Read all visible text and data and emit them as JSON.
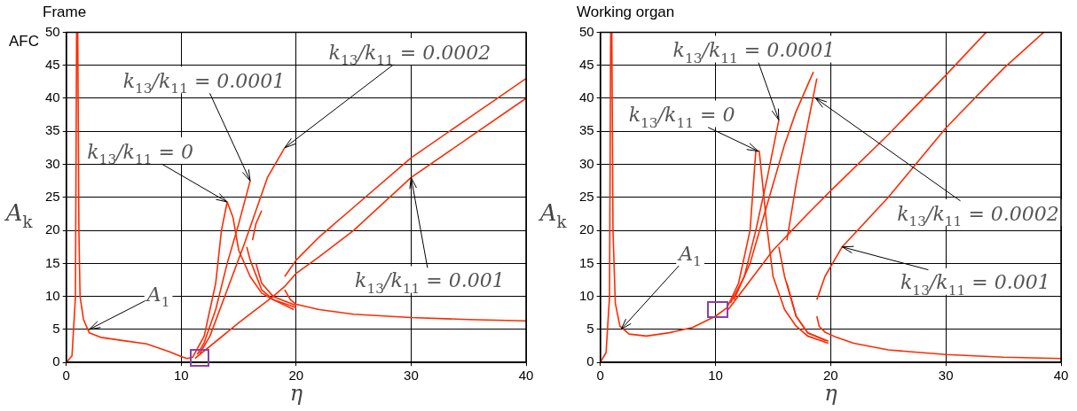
{
  "chart_data": [
    {
      "type": "line",
      "title": "Frame",
      "xlabel": "η",
      "ylabel": "A$_{k}$",
      "xlim": [
        0,
        40
      ],
      "ylim": [
        0,
        50
      ],
      "xticks": [
        0,
        10,
        20,
        30,
        40
      ],
      "yticks": [
        0,
        5,
        10,
        15,
        20,
        25,
        30,
        35,
        40,
        45,
        50
      ],
      "grid": true,
      "series": [
        {
          "color": "#ff2a00",
          "x": [
            0,
            0.5,
            0.8,
            0.9,
            0.95,
            1.0,
            1.1,
            1.2,
            1.5,
            2,
            3,
            5,
            7,
            9,
            10,
            10.5,
            11,
            12,
            13,
            13.5,
            14,
            14.5,
            15,
            16,
            17,
            18,
            20
          ],
          "values": [
            0,
            1,
            10,
            50,
            null,
            50,
            20,
            10,
            6.5,
            4.5,
            3.8,
            3.3,
            2.8,
            1.6,
            0.9,
            0.6,
            0.8,
            4,
            12,
            20,
            24.3,
            22,
            17,
            13,
            10.5,
            9.5,
            8.3
          ]
        },
        {
          "color": "#ff2a00",
          "x": [
            11.4,
            12,
            13,
            14,
            15,
            16
          ],
          "values": [
            1.2,
            3,
            8,
            15,
            21,
            27.5
          ]
        },
        {
          "color": "#ff2a00",
          "x": [
            15.7,
            16,
            17,
            18,
            19.8
          ],
          "values": [
            17.5,
            15.5,
            11,
            9.5,
            8
          ]
        },
        {
          "color": "#ff2a00",
          "x": [
            11.6,
            12.5,
            14,
            15.5,
            16.5,
            17.5,
            19
          ],
          "values": [
            1.3,
            4,
            11,
            18,
            23,
            28,
            32.5
          ]
        },
        {
          "color": "#ff2a00",
          "x": [
            16.2,
            16.5,
            17
          ],
          "values": [
            18.5,
            21,
            23
          ]
        },
        {
          "color": "#ff2a00",
          "x": [
            16.5,
            17,
            18,
            20
          ],
          "values": [
            15,
            12,
            10,
            8.6
          ]
        },
        {
          "color": "#ff2a00",
          "x": [
            11.2,
            15,
            18,
            19,
            20,
            22,
            25,
            30,
            35,
            40
          ],
          "values": [
            0.6,
            6,
            10,
            11.5,
            13.5,
            16,
            20,
            28,
            34,
            40
          ]
        },
        {
          "color": "#ff2a00",
          "x": [
            19,
            20,
            22,
            25,
            30,
            35,
            40
          ],
          "values": [
            13,
            15.5,
            19,
            23.5,
            31,
            37,
            43
          ]
        },
        {
          "color": "#ff2a00",
          "x": [
            19,
            19.5,
            20,
            22,
            25,
            30,
            35,
            40
          ],
          "values": [
            11,
            9.5,
            8.8,
            8,
            7.3,
            6.8,
            6.5,
            6.3
          ]
        }
      ],
      "annotations": [
        "AFC",
        {
          "text": "A$_{1}$",
          "x": 2,
          "y": 5
        },
        {
          "text": "k$_{13}$/k$_{11}$ = 0",
          "x": 14,
          "y": 24.3
        },
        {
          "text": "k$_{13}$/k$_{11}$ = 0.0001",
          "x": 16,
          "y": 27.5
        },
        {
          "text": "k$_{13}$/k$_{11}$ = 0.0002",
          "x": 19,
          "y": 32.5
        },
        {
          "text": "k$_{13}$/k$_{11}$ = 0.001",
          "x": 30,
          "y": 28
        }
      ]
    },
    {
      "type": "line",
      "title": "Working organ",
      "xlabel": "η",
      "ylabel": "A$_{k}$",
      "xlim": [
        0,
        40
      ],
      "ylim": [
        0,
        50
      ],
      "xticks": [
        0,
        10,
        20,
        30,
        40
      ],
      "yticks": [
        0,
        5,
        10,
        15,
        20,
        25,
        30,
        35,
        40,
        45,
        50
      ],
      "grid": true,
      "series": [
        {
          "color": "#ff2a00",
          "x": [
            0,
            0.5,
            0.8,
            0.9,
            0.95,
            1.0,
            1.1,
            1.3,
            1.7,
            2.5,
            4,
            6,
            8,
            10,
            11,
            12,
            13,
            13.5,
            13.8,
            14.5,
            15,
            16,
            17,
            18,
            19.8
          ],
          "values": [
            0,
            1.5,
            10,
            50,
            null,
            50,
            20,
            9,
            5.5,
            4.3,
            4,
            4.5,
            5.3,
            7,
            8.3,
            12,
            20,
            32,
            32,
            20,
            13,
            8,
            5.5,
            4,
            2.9
          ]
        },
        {
          "color": "#ff2a00",
          "x": [
            11.3,
            12.5,
            13.5,
            14.5,
            15.5
          ],
          "values": [
            9,
            13,
            20,
            28,
            36.7
          ]
        },
        {
          "color": "#ff2a00",
          "x": [
            15.5,
            16,
            17,
            18,
            19.6
          ],
          "values": [
            17.5,
            13,
            7,
            4.5,
            3.3
          ]
        },
        {
          "color": "#ff2a00",
          "x": [
            11.6,
            13,
            14.5,
            16,
            17,
            18.5
          ],
          "values": [
            9.5,
            15,
            24,
            33,
            38,
            44
          ]
        },
        {
          "color": "#ff2a00",
          "x": [
            16.2,
            17,
            18,
            18.8
          ],
          "values": [
            18.5,
            27,
            36,
            43
          ]
        },
        {
          "color": "#ff2a00",
          "x": [
            16.2,
            17,
            18,
            19.8
          ],
          "values": [
            12,
            7,
            4.5,
            3.2
          ]
        },
        {
          "color": "#ff2a00",
          "x": [
            11.1,
            15,
            18,
            20,
            25,
            30,
            33.5
          ],
          "values": [
            8,
            17,
            22.5,
            26,
            34.5,
            43.5,
            50
          ]
        },
        {
          "color": "#ff2a00",
          "x": [
            18.8,
            19.5,
            21,
            25,
            30,
            35,
            38.5
          ],
          "values": [
            9.5,
            13,
            17.5,
            25,
            35.5,
            44.5,
            50
          ]
        },
        {
          "color": "#ff2a00",
          "x": [
            18.8,
            19,
            19.5,
            20.5,
            22,
            25,
            30,
            35,
            40
          ],
          "values": [
            7,
            5.5,
            4.6,
            3.8,
            2.9,
            1.9,
            1.2,
            0.8,
            0.6
          ]
        }
      ],
      "annotations": [
        {
          "text": "A$_{1}$",
          "x": 1.8,
          "y": 5
        },
        {
          "text": "k$_{13}$/k$_{11}$ = 0",
          "x": 13.7,
          "y": 32
        },
        {
          "text": "k$_{13}$/k$_{11}$ = 0.0001",
          "x": 15.5,
          "y": 36.7
        },
        {
          "text": "k$_{13}$/k$_{11}$ = 0.0002",
          "x": 18.7,
          "y": 40
        },
        {
          "text": "k$_{13}$/k$_{11}$ = 0.001",
          "x": 21,
          "y": 17.5
        }
      ]
    }
  ]
}
